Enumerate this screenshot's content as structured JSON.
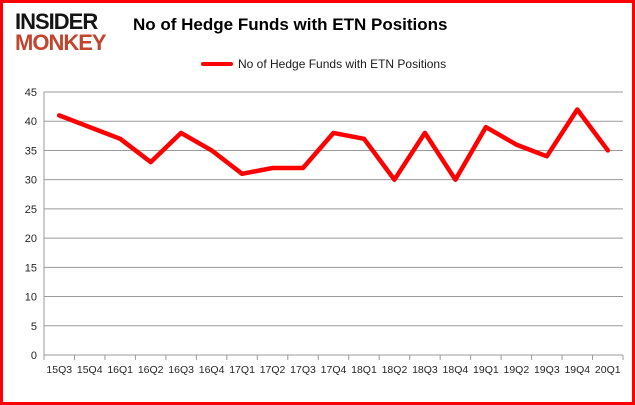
{
  "brand": {
    "line1": "INSIDER",
    "line2": "MONKEY"
  },
  "header": {
    "title": "No of Hedge Funds with ETN Positions"
  },
  "legend": {
    "label": "No of Hedge Funds with ETN Positions"
  },
  "colors": {
    "border": "#fe0000",
    "line": "#fe0000",
    "grid": "#9b9b9b",
    "axis": "#9b9b9b",
    "axis_text": "#262626",
    "brand_accent": "#c2452f"
  },
  "chart_data": {
    "type": "line",
    "title": "No of Hedge Funds with ETN Positions",
    "categories": [
      "15Q3",
      "15Q4",
      "16Q1",
      "16Q2",
      "16Q3",
      "16Q4",
      "17Q1",
      "17Q2",
      "17Q3",
      "17Q4",
      "18Q1",
      "18Q2",
      "18Q3",
      "18Q4",
      "19Q1",
      "19Q2",
      "19Q3",
      "19Q4",
      "20Q1"
    ],
    "series": [
      {
        "name": "No of Hedge Funds with ETN Positions",
        "color": "#fe0000",
        "values": [
          41,
          39,
          37,
          33,
          38,
          35,
          31,
          32,
          32,
          38,
          37,
          30,
          38,
          30,
          39,
          36,
          34,
          42,
          35
        ]
      }
    ],
    "xlabel": "",
    "ylabel": "",
    "ylim": [
      0,
      45
    ],
    "yticks": [
      0,
      5,
      10,
      15,
      20,
      25,
      30,
      35,
      40,
      45
    ],
    "grid": true,
    "legend_position": "top"
  }
}
